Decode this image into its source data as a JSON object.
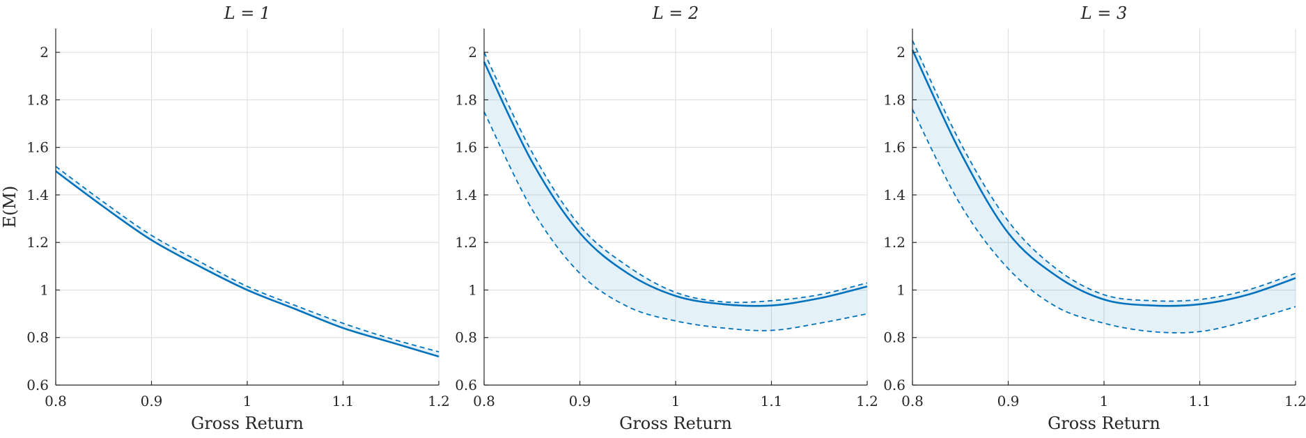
{
  "colors": {
    "line": "#0072BD",
    "band_fill": "#0072BD",
    "grid": "#dcdcdc",
    "axis": "#262626"
  },
  "shared_axes": {
    "xlabel": "Gross Return",
    "ylabel": "E(M)",
    "xlim": [
      0.8,
      1.2
    ],
    "ylim": [
      0.6,
      2.1
    ],
    "xticks": [
      0.8,
      0.9,
      1.0,
      1.1,
      1.2
    ],
    "xtick_labels": [
      "0.8",
      "0.9",
      "1",
      "1.1",
      "1.2"
    ],
    "yticks": [
      0.6,
      0.8,
      1.0,
      1.2,
      1.4,
      1.6,
      1.8,
      2.0
    ],
    "ytick_labels": [
      "0.6",
      "0.8",
      "1",
      "1.2",
      "1.4",
      "1.6",
      "1.8",
      "2"
    ],
    "grid": true
  },
  "chart_data": [
    {
      "type": "line",
      "title": "L = 1",
      "xlabel": "Gross Return",
      "ylabel": "E(M)",
      "xlim": [
        0.8,
        1.2
      ],
      "ylim": [
        0.6,
        2.1
      ],
      "x": [
        0.8,
        0.85,
        0.9,
        0.95,
        1.0,
        1.05,
        1.1,
        1.15,
        1.2
      ],
      "series": [
        {
          "role": "estimate",
          "style": "solid",
          "values": [
            1.5,
            1.35,
            1.21,
            1.1,
            1.0,
            0.92,
            0.84,
            0.78,
            0.72
          ]
        },
        {
          "role": "upper",
          "style": "dashed",
          "values": [
            1.52,
            1.37,
            1.23,
            1.12,
            1.015,
            0.935,
            0.86,
            0.795,
            0.74
          ]
        },
        {
          "role": "lower",
          "style": "dashed",
          "values": [
            1.5,
            1.35,
            1.21,
            1.1,
            1.0,
            0.92,
            0.84,
            0.78,
            0.72
          ]
        }
      ]
    },
    {
      "type": "line",
      "title": "L = 2",
      "xlabel": "Gross Return",
      "ylabel": "",
      "xlim": [
        0.8,
        1.2
      ],
      "ylim": [
        0.6,
        2.1
      ],
      "x": [
        0.8,
        0.85,
        0.9,
        0.95,
        1.0,
        1.05,
        1.1,
        1.15,
        1.2
      ],
      "series": [
        {
          "role": "estimate",
          "style": "solid",
          "values": [
            1.96,
            1.54,
            1.24,
            1.07,
            0.975,
            0.94,
            0.935,
            0.965,
            1.015
          ]
        },
        {
          "role": "upper",
          "style": "dashed",
          "values": [
            2.0,
            1.58,
            1.27,
            1.1,
            0.99,
            0.95,
            0.955,
            0.98,
            1.03
          ]
        },
        {
          "role": "lower",
          "style": "dashed",
          "values": [
            1.75,
            1.34,
            1.07,
            0.93,
            0.87,
            0.84,
            0.83,
            0.86,
            0.9
          ]
        }
      ]
    },
    {
      "type": "line",
      "title": "L = 3",
      "xlabel": "Gross Return",
      "ylabel": "",
      "xlim": [
        0.8,
        1.2
      ],
      "ylim": [
        0.6,
        2.1
      ],
      "x": [
        0.8,
        0.85,
        0.9,
        0.95,
        1.0,
        1.05,
        1.1,
        1.15,
        1.2
      ],
      "series": [
        {
          "role": "estimate",
          "style": "solid",
          "values": [
            2.01,
            1.58,
            1.24,
            1.06,
            0.96,
            0.935,
            0.94,
            0.98,
            1.05
          ]
        },
        {
          "role": "upper",
          "style": "dashed",
          "values": [
            2.05,
            1.62,
            1.29,
            1.09,
            0.98,
            0.955,
            0.96,
            1.0,
            1.07
          ]
        },
        {
          "role": "lower",
          "style": "dashed",
          "values": [
            1.76,
            1.36,
            1.09,
            0.93,
            0.86,
            0.825,
            0.825,
            0.87,
            0.93
          ]
        }
      ]
    }
  ]
}
